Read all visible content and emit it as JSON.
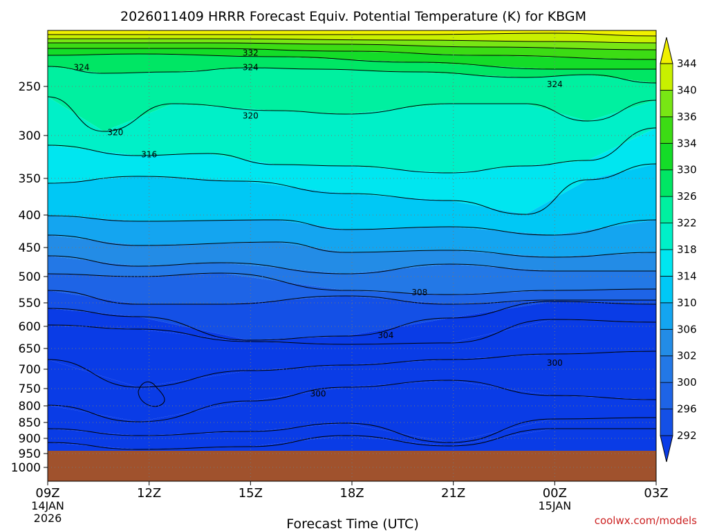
{
  "chart_data": {
    "type": "heatmap",
    "title": "2026011409 HRRR Forecast Equiv. Potential Temperature (K) for KBGM",
    "xlabel": "Forecast Time (UTC)",
    "ylabel": "",
    "x_ticks": [
      "09Z",
      "12Z",
      "15Z",
      "18Z",
      "21Z",
      "00Z",
      "03Z"
    ],
    "x_subticks": [
      {
        "tick": "09Z",
        "lines": [
          "14JAN",
          "2026"
        ]
      },
      {
        "tick": "00Z",
        "lines": [
          "15JAN"
        ]
      }
    ],
    "y_ticks": [
      "250",
      "300",
      "350",
      "400",
      "450",
      "500",
      "550",
      "600",
      "650",
      "700",
      "750",
      "800",
      "850",
      "900",
      "950",
      "1000"
    ],
    "y_values": [
      250,
      300,
      350,
      400,
      450,
      500,
      550,
      600,
      650,
      700,
      750,
      800,
      850,
      900,
      950,
      1000
    ],
    "ylim": [
      200,
      1000
    ],
    "xlim_hours": [
      0,
      18
    ],
    "colorbar_levels": [
      292,
      296,
      300,
      302,
      306,
      310,
      314,
      318,
      322,
      326,
      330,
      334,
      336,
      340,
      344
    ],
    "colorbar_colors": [
      "#0a3ce6",
      "#1450e6",
      "#1e64e6",
      "#2378e6",
      "#238ce6",
      "#14a5f0",
      "#00c8f5",
      "#00e6f0",
      "#00f0c8",
      "#00f0a0",
      "#00e664",
      "#14dc28",
      "#3cdc14",
      "#78e614",
      "#c8f000",
      "#f0f000"
    ],
    "contour_labels": [
      {
        "value": "332",
        "hour": 6.0,
        "pressure": 220
      },
      {
        "value": "324",
        "hour": 1.0,
        "pressure": 233
      },
      {
        "value": "324",
        "hour": 6.0,
        "pressure": 233
      },
      {
        "value": "324",
        "hour": 15.0,
        "pressure": 248
      },
      {
        "value": "320",
        "hour": 6.0,
        "pressure": 280
      },
      {
        "value": "320",
        "hour": 2.0,
        "pressure": 297
      },
      {
        "value": "316",
        "hour": 3.0,
        "pressure": 322
      },
      {
        "value": "308",
        "hour": 11.0,
        "pressure": 530
      },
      {
        "value": "304",
        "hour": 10.0,
        "pressure": 620
      },
      {
        "value": "300",
        "hour": 15.0,
        "pressure": 685
      },
      {
        "value": "300",
        "hour": 8.0,
        "pressure": 765
      }
    ],
    "surface_pressure": 950,
    "surface_color": "#a0522d",
    "grid": true,
    "legend_position": "right"
  },
  "credit": "coolwx.com/models"
}
